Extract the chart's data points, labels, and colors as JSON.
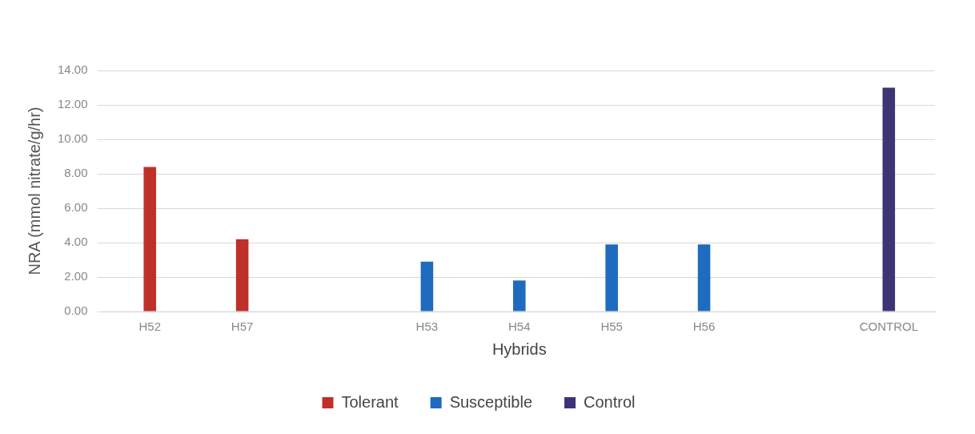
{
  "chart_data": {
    "type": "bar",
    "xlabel": "Hybrids",
    "ylabel": "NRA (mmol nitrate/g/hr)",
    "categories": [
      "H52",
      "H57",
      null,
      "H53",
      "H54",
      "H55",
      "H56",
      null,
      "CONTROL"
    ],
    "series": [
      {
        "name": "Tolerant",
        "color": "#c0302a",
        "values": [
          8.4,
          4.2,
          null,
          null,
          null,
          null,
          null,
          null,
          null
        ]
      },
      {
        "name": "Susceptible",
        "color": "#1f6bbf",
        "values": [
          null,
          null,
          null,
          2.9,
          1.8,
          3.9,
          3.9,
          null,
          null
        ]
      },
      {
        "name": "Control",
        "color": "#3b3576",
        "values": [
          null,
          null,
          null,
          null,
          null,
          null,
          null,
          null,
          13.0
        ]
      }
    ],
    "ylim": [
      0,
      14
    ],
    "yticks": [
      {
        "value": 0,
        "label": "0.00"
      },
      {
        "value": 2,
        "label": "2.00"
      },
      {
        "value": 4,
        "label": "4.00"
      },
      {
        "value": 6,
        "label": "6.00"
      },
      {
        "value": 8,
        "label": "8.00"
      },
      {
        "value": 10,
        "label": "10.00"
      },
      {
        "value": 12,
        "label": "12.00"
      },
      {
        "value": 14,
        "label": "14.00"
      }
    ],
    "grid": "y",
    "legend": "bottom"
  }
}
